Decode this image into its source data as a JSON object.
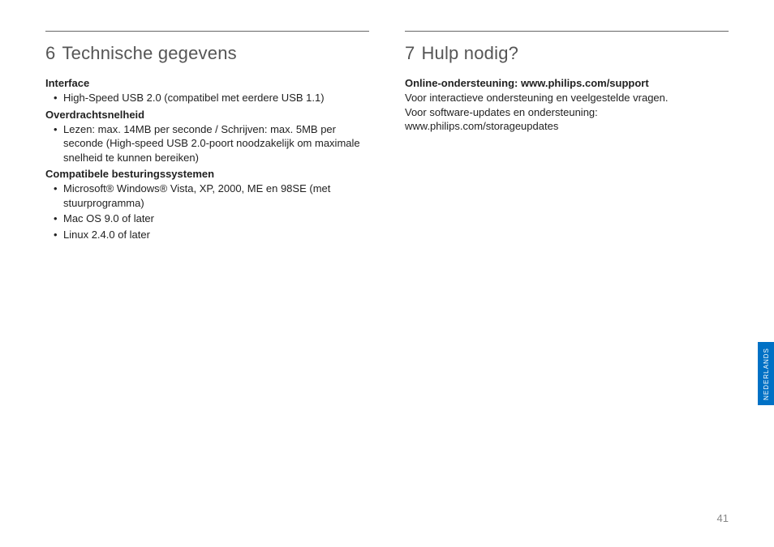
{
  "left": {
    "section_number": "6",
    "section_title": "Technische gegevens",
    "groups": [
      {
        "heading": "Interface",
        "items": [
          "High-Speed USB 2.0 (compatibel met eerdere USB 1.1)"
        ]
      },
      {
        "heading": "Overdrachtsnelheid",
        "items": [
          "Lezen: max. 14MB per seconde / Schrijven: max. 5MB per seconde (High-speed USB 2.0-poort noodzakelijk om maximale snelheid te kunnen bereiken)"
        ]
      },
      {
        "heading": "Compatibele besturingssystemen",
        "items": [
          "Microsoft® Windows® Vista, XP, 2000, ME en 98SE (met stuurprogramma)",
          "Mac OS 9.0 of later",
          "Linux 2.4.0 of later"
        ]
      }
    ]
  },
  "right": {
    "section_number": "7",
    "section_title": "Hulp nodig?",
    "support_heading": "Online-ondersteuning: www.philips.com/support",
    "line1": "Voor interactieve ondersteuning en veelgestelde vragen.",
    "line2": "Voor software-updates en ondersteuning:",
    "line3": "www.philips.com/storageupdates"
  },
  "lang_tab": "NEDERLANDS",
  "page_number": "41",
  "colors": {
    "tab_bg": "#0071c5",
    "rule": "#666666",
    "text": "#222222",
    "title": "#555555",
    "pagenum": "#888888"
  }
}
